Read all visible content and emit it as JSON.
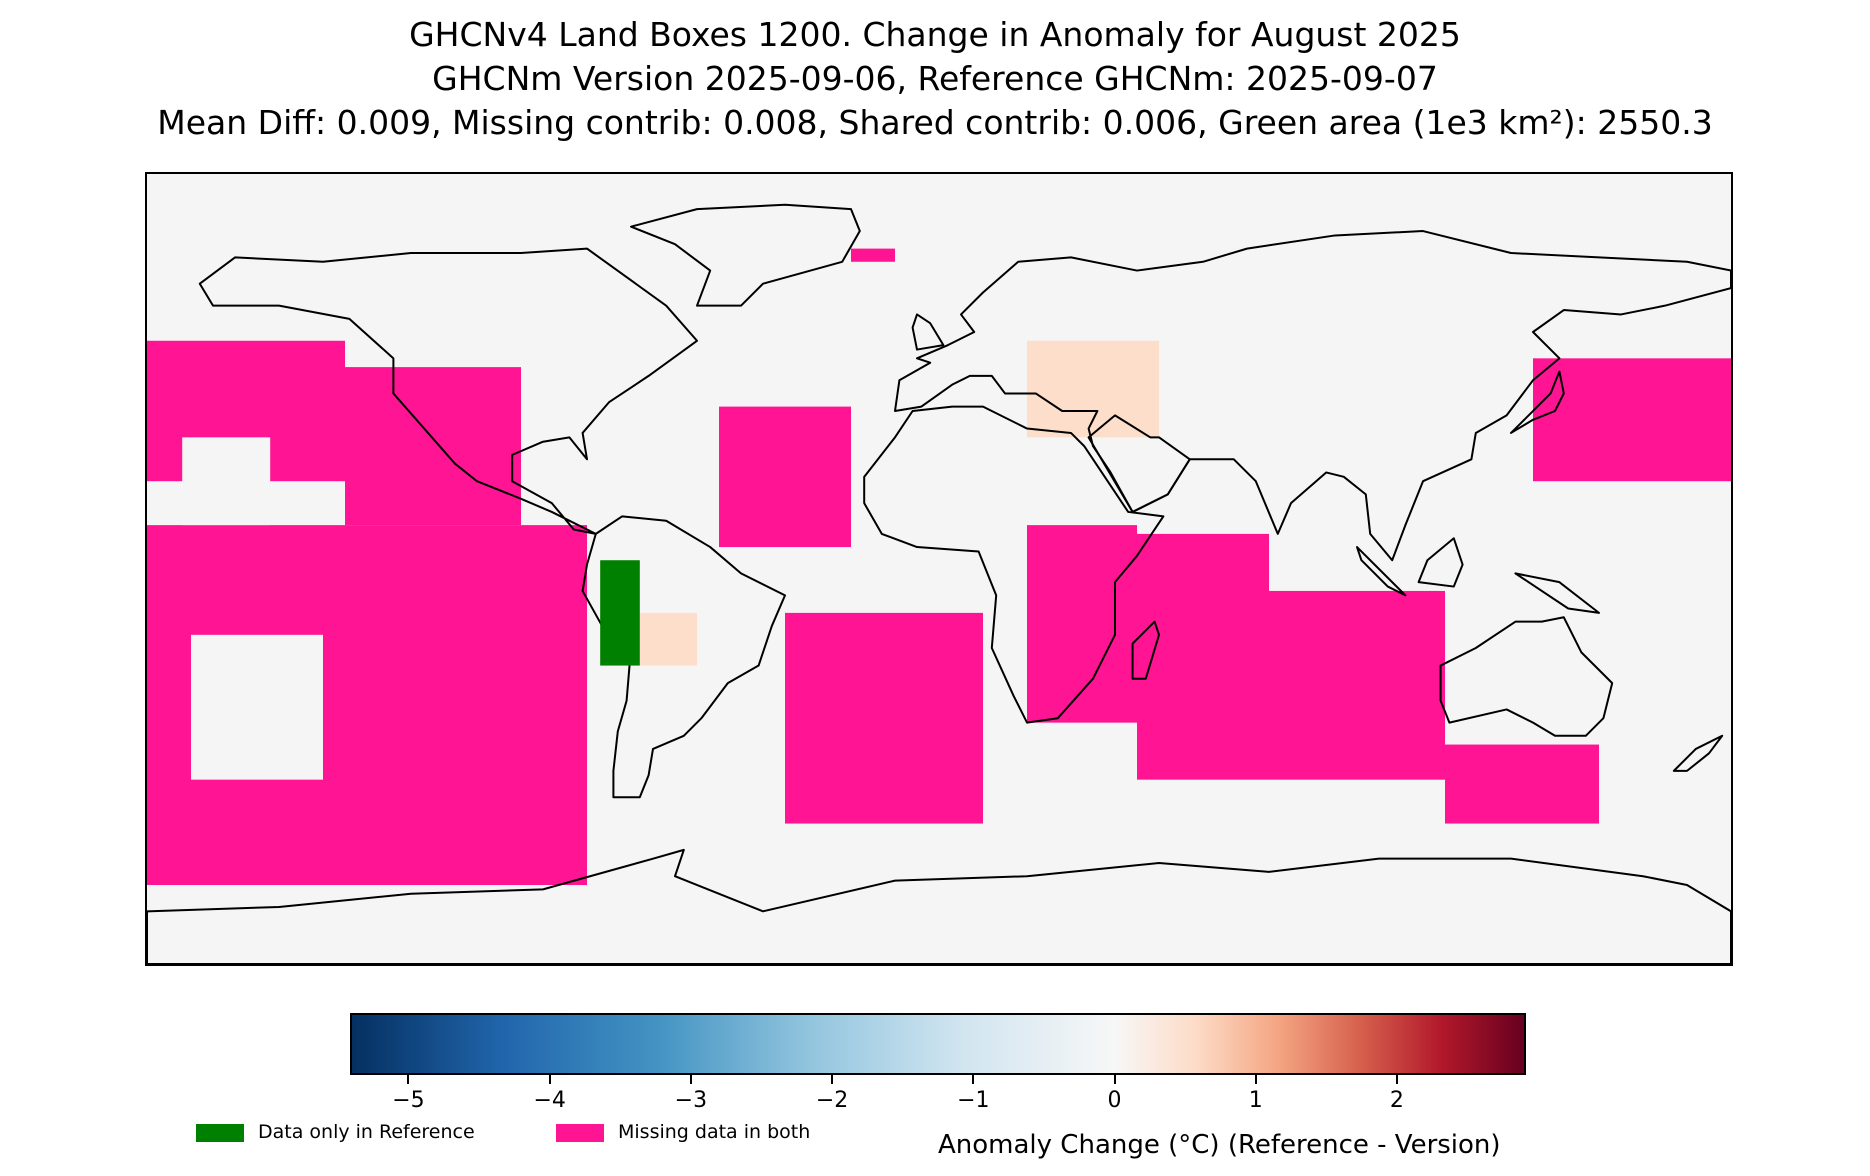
{
  "title": {
    "line1": "GHCNv4 Land Boxes 1200. Change in Anomaly for August 2025",
    "line2": "GHCNm Version 2025-09-06, Reference GHCNm: 2025-09-07",
    "line3": "Mean Diff: 0.009, Missing contrib: 0.008, Shared contrib: 0.006, Green area (1e3 km²): 2550.3"
  },
  "map": {
    "projection": "equirectangular",
    "extent_lon": [
      -180,
      180
    ],
    "extent_lat": [
      -90,
      90
    ],
    "background_color": "#f5f5f5",
    "coastline_color": "#000000",
    "missing_color": "#ff1493",
    "reference_only_color": "#008000",
    "missing_regions": [
      {
        "name": "north-pacific-east",
        "lon": [
          -180,
          -135
        ],
        "lat": [
          20,
          52
        ]
      },
      {
        "name": "north-pacific-central",
        "lon": [
          -135,
          -95
        ],
        "lat": [
          10,
          46
        ]
      },
      {
        "name": "south-pacific",
        "lon": [
          -180,
          -80
        ],
        "lat": [
          -72,
          10
        ]
      },
      {
        "name": "north-atlantic",
        "lon": [
          -50,
          -20
        ],
        "lat": [
          5,
          37
        ]
      },
      {
        "name": "south-atlantic",
        "lon": [
          -35,
          10
        ],
        "lat": [
          -58,
          -10
        ]
      },
      {
        "name": "indian-ocean-west",
        "lon": [
          45,
          75
        ],
        "lat": [
          -48,
          8
        ]
      },
      {
        "name": "indian-ocean-east",
        "lon": [
          75,
          115
        ],
        "lat": [
          -48,
          -5
        ]
      },
      {
        "name": "southern-indian",
        "lon": [
          115,
          150
        ],
        "lat": [
          -58,
          -40
        ]
      },
      {
        "name": "west-pacific",
        "lon": [
          135,
          180
        ],
        "lat": [
          20,
          48
        ]
      },
      {
        "name": "east-africa",
        "lon": [
          20,
          45
        ],
        "lat": [
          -35,
          10
        ]
      },
      {
        "name": "arctic-strip",
        "lon": [
          -20,
          -10
        ],
        "lat": [
          70,
          73
        ]
      }
    ],
    "reference_only_regions": [
      {
        "name": "peru-coast",
        "lon": [
          -77,
          -68
        ],
        "lat": [
          -22,
          2
        ]
      }
    ],
    "warm_anomaly_regions": [
      {
        "name": "turkey-caucasus",
        "lon": [
          20,
          50
        ],
        "lat": [
          30,
          52
        ],
        "value": 0.6
      },
      {
        "name": "bolivia",
        "lon": [
          -68,
          -55
        ],
        "lat": [
          -22,
          -10
        ],
        "value": 0.4
      }
    ]
  },
  "colorbar": {
    "vmin": -5.4,
    "vmax": 2.9,
    "ticks": [
      "−5",
      "−4",
      "−3",
      "−2",
      "−1",
      "0",
      "1",
      "2"
    ],
    "tick_values": [
      -5,
      -4,
      -3,
      -2,
      -1,
      0,
      1,
      2
    ],
    "label": "Anomaly Change (°C) (Reference - Version)",
    "colors": [
      "#053061",
      "#2166ac",
      "#4393c3",
      "#92c5de",
      "#d1e5f0",
      "#f7f7f7",
      "#fddbc7",
      "#f4a582",
      "#d6604d",
      "#b2182b",
      "#67001f"
    ]
  },
  "legend": [
    {
      "label": "Data only in Reference",
      "color": "#008000"
    },
    {
      "label": "Missing data in both",
      "color": "#ff1493"
    }
  ]
}
